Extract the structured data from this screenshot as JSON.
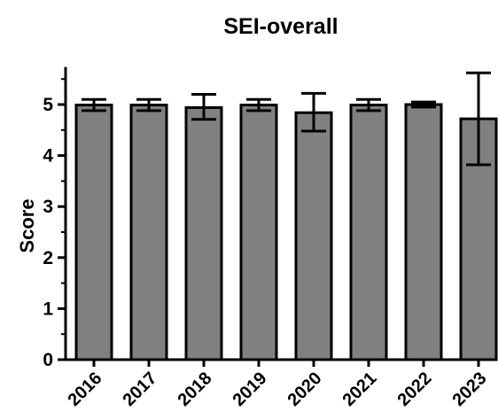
{
  "colors": {
    "bar_fill": "#808080",
    "stroke": "#000000",
    "background": "#ffffff"
  },
  "chart_data": {
    "type": "bar",
    "title": "SEI-overall",
    "xlabel": "",
    "ylabel": "Score",
    "categories": [
      "2016",
      "2017",
      "2018",
      "2019",
      "2020",
      "2021",
      "2022",
      "2023"
    ],
    "values": [
      4.99,
      4.99,
      4.94,
      4.99,
      4.84,
      4.99,
      5.0,
      4.72
    ],
    "error_low": [
      0.11,
      0.11,
      0.23,
      0.11,
      0.36,
      0.11,
      0.05,
      0.9
    ],
    "error_high": [
      0.11,
      0.11,
      0.26,
      0.11,
      0.38,
      0.11,
      0.05,
      0.9
    ],
    "ylim": [
      0,
      5.7
    ],
    "yticks": [
      "0",
      "1",
      "2",
      "3",
      "4",
      "5"
    ],
    "ytick_values": [
      0,
      1,
      2,
      3,
      4,
      5
    ],
    "minor_ytick_values": [
      0.5,
      1.5,
      2.5,
      3.5,
      4.5,
      5.5
    ],
    "grid": false,
    "legend": "none"
  }
}
